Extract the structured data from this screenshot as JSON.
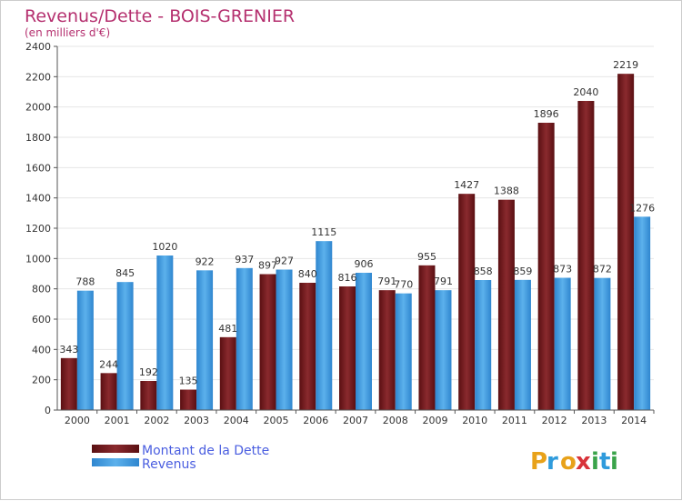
{
  "chart_data": {
    "type": "bar",
    "title": "Revenus/Dette - BOIS-GRENIER",
    "subtitle": "(en milliers d'€)",
    "categories": [
      "2000",
      "2001",
      "2002",
      "2003",
      "2004",
      "2005",
      "2006",
      "2007",
      "2008",
      "2009",
      "2010",
      "2011",
      "2012",
      "2013",
      "2014"
    ],
    "series": [
      {
        "name": "Montant de la Dette",
        "color": "#7a1e22",
        "values": [
          343,
          244,
          192,
          135,
          481,
          897,
          840,
          816,
          791,
          955,
          1427,
          1388,
          1896,
          2040,
          2219
        ]
      },
      {
        "name": "Revenus",
        "color": "#3f9be0",
        "values": [
          788,
          845,
          1020,
          922,
          937,
          927,
          1115,
          906,
          770,
          791,
          858,
          859,
          873,
          872,
          1276
        ]
      }
    ],
    "ylim": [
      0,
      2400
    ],
    "yticks": [
      0,
      200,
      400,
      600,
      800,
      1000,
      1200,
      1400,
      1600,
      1800,
      2000,
      2200,
      2400
    ],
    "grid": true,
    "legend_position": "bottom-left"
  },
  "logo": {
    "text": "Proxiti",
    "icon": "proxiti-logo"
  }
}
